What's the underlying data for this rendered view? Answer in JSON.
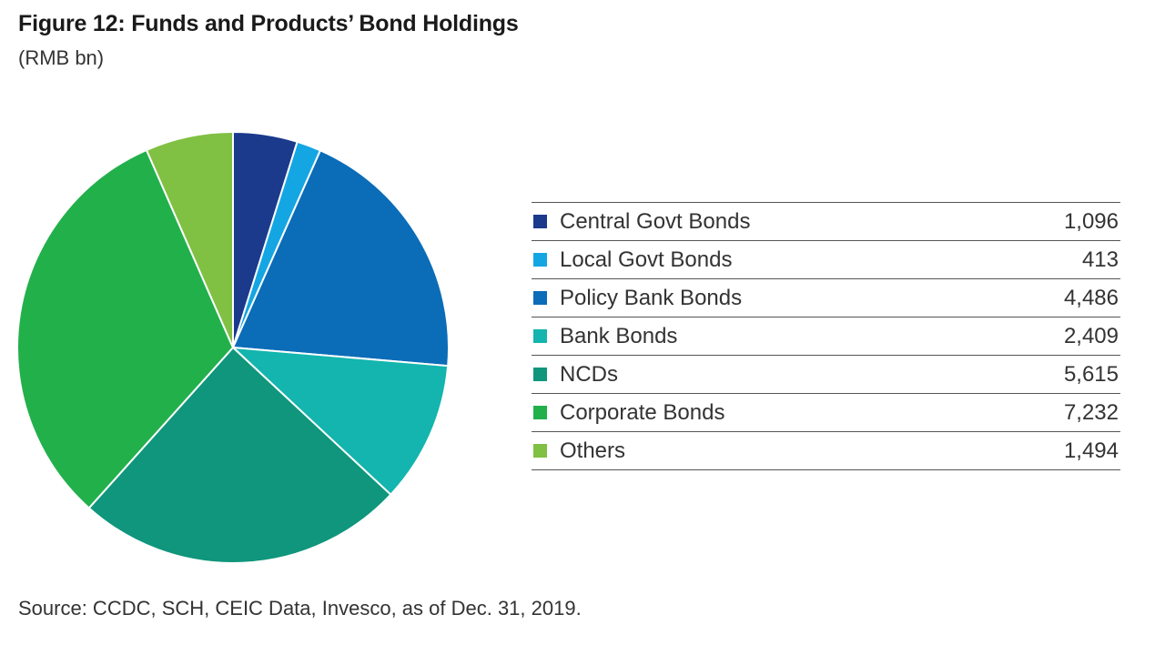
{
  "header": {
    "title": "Figure 12:  Funds and Products’ Bond Holdings",
    "unit": "(RMB bn)"
  },
  "chart_data": {
    "type": "pie",
    "title": "Figure 12:  Funds and Products’ Bond Holdings",
    "subtitle": "(RMB bn)",
    "legend_placement": "right",
    "slices": [
      {
        "label": "Central Govt Bonds",
        "value": 1096,
        "display": "1,096",
        "color": "#1B3A8C"
      },
      {
        "label": "Local Govt Bonds",
        "value": 413,
        "display": "413",
        "color": "#14A6E3"
      },
      {
        "label": "Policy Bank Bonds",
        "value": 4486,
        "display": "4,486",
        "color": "#0B6CB8"
      },
      {
        "label": "Bank Bonds",
        "value": 2409,
        "display": "2,409",
        "color": "#13B5AE"
      },
      {
        "label": "NCDs",
        "value": 5615,
        "display": "5,615",
        "color": "#0F967C"
      },
      {
        "label": "Corporate Bonds",
        "value": 7232,
        "display": "7,232",
        "color": "#22B04B"
      },
      {
        "label": "Others",
        "value": 1494,
        "display": "1,494",
        "color": "#80C043"
      }
    ]
  },
  "footer": {
    "source": "Source: CCDC, SCH, CEIC Data, Invesco, as of Dec. 31, 2019."
  }
}
